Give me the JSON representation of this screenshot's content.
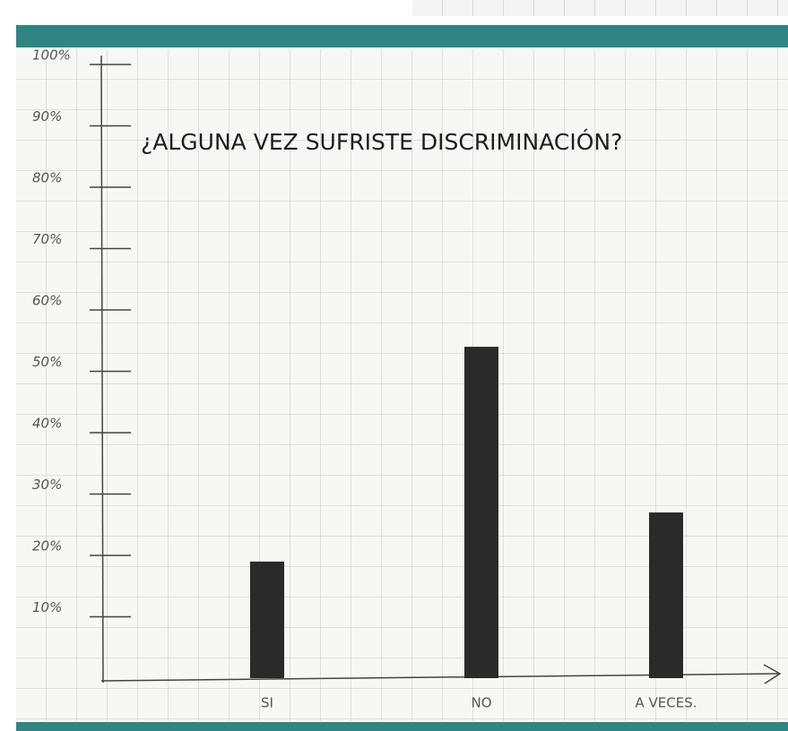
{
  "chart_data": {
    "type": "bar",
    "title": "¿ALGUNA VEZ SUFRISTE DISCRIMINACIÓN?",
    "categories": [
      "SI",
      "NO",
      "A VECES."
    ],
    "values": [
      19,
      54,
      27
    ],
    "color": "#2a2a2a",
    "ylim": [
      0,
      100
    ],
    "yticks": [
      {
        "value": 10,
        "label": "10%"
      },
      {
        "value": 20,
        "label": "20%"
      },
      {
        "value": 30,
        "label": "30%"
      },
      {
        "value": 40,
        "label": "40%"
      },
      {
        "value": 50,
        "label": "50%"
      },
      {
        "value": 60,
        "label": "60%"
      },
      {
        "value": 70,
        "label": "70%"
      },
      {
        "value": 80,
        "label": "80%"
      },
      {
        "value": 90,
        "label": "90%"
      },
      {
        "value": 100,
        "label": "100%"
      }
    ]
  }
}
